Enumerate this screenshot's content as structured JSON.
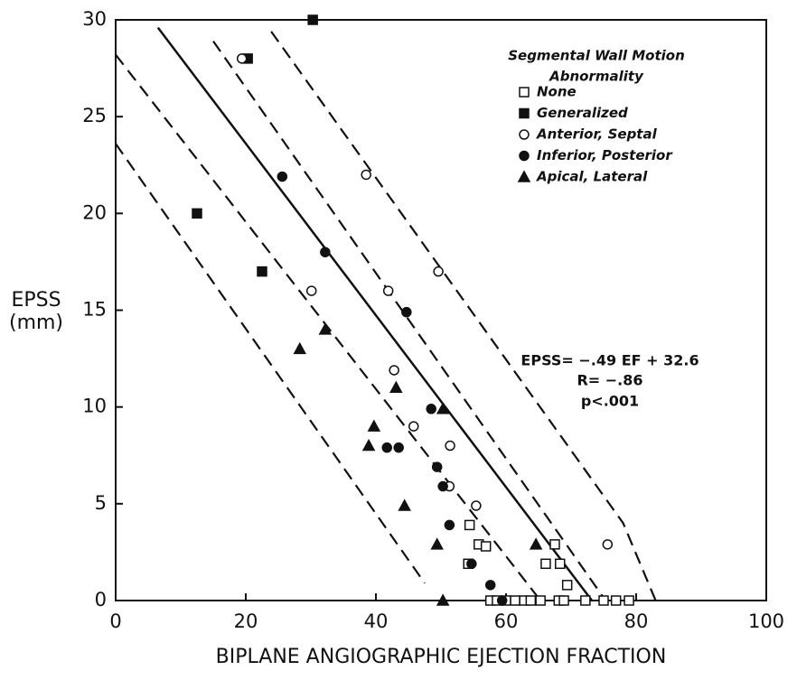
{
  "chart_data": {
    "type": "scatter",
    "xlabel": "BIPLANE ANGIOGRAPHIC EJECTION FRACTION",
    "ylabel": [
      "EPSS",
      "(mm)"
    ],
    "legend_title": [
      "Segmental Wall Motion",
      "Abnormality"
    ],
    "annotations": [
      "EPSS= −.49 EF + 32.6",
      "R= −.86",
      "p<.001"
    ],
    "xlim": [
      0,
      100
    ],
    "ylim": [
      0,
      30
    ],
    "xticks": [
      0,
      20,
      40,
      60,
      80,
      100
    ],
    "yticks": [
      0,
      5,
      10,
      15,
      20,
      25,
      30
    ],
    "legend": "upper right",
    "series": [
      {
        "name": "None",
        "marker": "open-square",
        "color": "#111",
        "x": [
          54.4,
          54.2,
          55.8,
          56.9,
          57.6,
          58.6,
          60,
          61.4,
          62.8,
          63.8,
          65.3,
          66.1,
          67.5,
          68.3,
          68.1,
          68.9,
          69.4,
          72.2,
          75,
          76.9,
          78.9
        ],
        "y": [
          3.9,
          1.9,
          2.9,
          2.8,
          0,
          0,
          0,
          0,
          0,
          0,
          0,
          1.9,
          2.9,
          1.9,
          0,
          0,
          0.8,
          0,
          0,
          0,
          0
        ]
      },
      {
        "name": "Generalized",
        "marker": "filled-square",
        "color": "#111",
        "x": [
          20.3,
          30.3,
          12.5,
          22.5
        ],
        "y": [
          28,
          30,
          20,
          17
        ]
      },
      {
        "name": "Anterior, Septal",
        "marker": "open-circle",
        "color": "#111",
        "x": [
          19.4,
          30.1,
          38.5,
          41.9,
          42.8,
          45.8,
          49.6,
          51.4,
          51.3,
          55.4,
          75.6
        ],
        "y": [
          28,
          16,
          22,
          16,
          11.9,
          9,
          17,
          8,
          5.9,
          4.9,
          2.9
        ]
      },
      {
        "name": "Inferior, Posterior",
        "marker": "filled-circle",
        "color": "#111",
        "x": [
          25.6,
          32.2,
          44.7,
          48.5,
          49.4,
          50.3,
          51.3,
          54.7,
          57.6,
          59.4,
          41.7,
          43.5
        ],
        "y": [
          21.9,
          18,
          14.9,
          9.9,
          6.9,
          5.9,
          3.9,
          1.9,
          0.8,
          0,
          7.9,
          7.9
        ]
      },
      {
        "name": "Apical, Lateral",
        "marker": "filled-triangle",
        "color": "#111",
        "x": [
          28.3,
          32.2,
          43.1,
          38.9,
          39.7,
          44.4,
          50.3,
          49.4,
          50.3,
          64.6
        ],
        "y": [
          13,
          14,
          11,
          8,
          9,
          4.9,
          9.9,
          2.9,
          0,
          2.9
        ]
      }
    ],
    "reference_lines": [
      {
        "style": "solid",
        "x": [
          6.5,
          73.2
        ],
        "y": [
          29.6,
          0
        ]
      },
      {
        "style": "dashed",
        "x": [
          0,
          65.3
        ],
        "y": [
          28.2,
          0
        ]
      },
      {
        "style": "dashed",
        "x": [
          0,
          47.5
        ],
        "y": [
          23.6,
          0.9
        ]
      },
      {
        "style": "dashed",
        "x": [
          15,
          75.3
        ],
        "y": [
          28.9,
          0
        ]
      },
      {
        "style": "dashed",
        "x": [
          23.9,
          78,
          83
        ],
        "y": [
          29.4,
          4,
          0
        ]
      }
    ]
  }
}
